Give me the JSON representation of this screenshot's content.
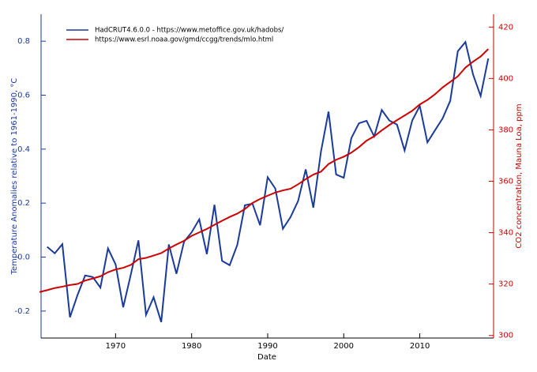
{
  "chart_data": {
    "type": "line",
    "x_label": "Date",
    "y_label": "Temperature Anomalies relative to 1961-1990, °C",
    "y2_label": "CO2 concentration, Mauna Loa, ppm",
    "xlim": [
      1960.2,
      2019.7
    ],
    "xticks": [
      1970,
      1980,
      1990,
      2000,
      2010
    ],
    "ylim": [
      -0.3,
      0.9
    ],
    "yticks": [
      -0.2,
      {
        "value": 0,
        "label": "0.0"
      },
      0.2,
      0.4,
      0.6,
      0.8
    ],
    "y2lim": [
      299,
      425
    ],
    "y2ticks": [
      300,
      320,
      340,
      360,
      380,
      400,
      420
    ],
    "y_color": "#1a3a9a",
    "y2_color": "#cc0000",
    "legend": "upper left",
    "x": [
      1960,
      1961,
      1962,
      1963,
      1964,
      1965,
      1966,
      1967,
      1968,
      1969,
      1970,
      1971,
      1972,
      1973,
      1974,
      1975,
      1976,
      1977,
      1978,
      1979,
      1980,
      1981,
      1982,
      1983,
      1984,
      1985,
      1986,
      1987,
      1988,
      1989,
      1990,
      1991,
      1992,
      1993,
      1994,
      1995,
      1996,
      1997,
      1998,
      1999,
      2000,
      2001,
      2002,
      2003,
      2004,
      2005,
      2006,
      2007,
      2008,
      2009,
      2010,
      2011,
      2012,
      2013,
      2014,
      2015,
      2016,
      2017,
      2018,
      2019
    ],
    "series": [
      {
        "name": "HadCRUT4.6.0.0 - https://www.metoffice.gov.uk/hadobs/",
        "color": "#1a3a9a",
        "values": [
          null,
          0.038,
          0.014,
          0.048,
          -0.223,
          -0.14,
          -0.068,
          -0.074,
          -0.113,
          0.032,
          -0.027,
          -0.186,
          -0.065,
          0.062,
          -0.214,
          -0.149,
          -0.241,
          0.047,
          -0.062,
          0.057,
          0.092,
          0.14,
          0.011,
          0.194,
          -0.014,
          -0.03,
          0.045,
          0.192,
          0.198,
          0.118,
          0.296,
          0.254,
          0.105,
          0.148,
          0.208,
          0.325,
          0.183,
          0.39,
          0.539,
          0.306,
          0.294,
          0.441,
          0.496,
          0.505,
          0.447,
          0.545,
          0.506,
          0.491,
          0.395,
          0.506,
          0.56,
          0.425,
          0.47,
          0.514,
          0.579,
          0.763,
          0.797,
          0.677,
          0.597,
          0.736
        ]
      },
      {
        "name": "https://www.esrl.noaa.gov/gmd/ccgg/trends/mlo.html",
        "color": "#cc0000",
        "axis": "y2",
        "values": [
          316.91,
          317.64,
          318.45,
          318.99,
          319.62,
          320.04,
          321.38,
          322.16,
          323.04,
          324.62,
          325.68,
          326.32,
          327.45,
          329.68,
          330.18,
          331.11,
          332.04,
          333.83,
          335.4,
          336.84,
          338.75,
          340.11,
          341.45,
          343.05,
          344.65,
          346.12,
          347.42,
          349.19,
          351.57,
          353.12,
          354.39,
          355.61,
          356.45,
          357.1,
          358.83,
          360.82,
          362.61,
          363.73,
          366.7,
          368.38,
          369.55,
          371.14,
          373.28,
          375.8,
          377.52,
          379.8,
          381.9,
          383.79,
          385.6,
          387.43,
          389.9,
          391.65,
          393.85,
          396.52,
          398.65,
          400.83,
          404.24,
          406.55,
          408.52,
          411.44
        ]
      }
    ]
  }
}
